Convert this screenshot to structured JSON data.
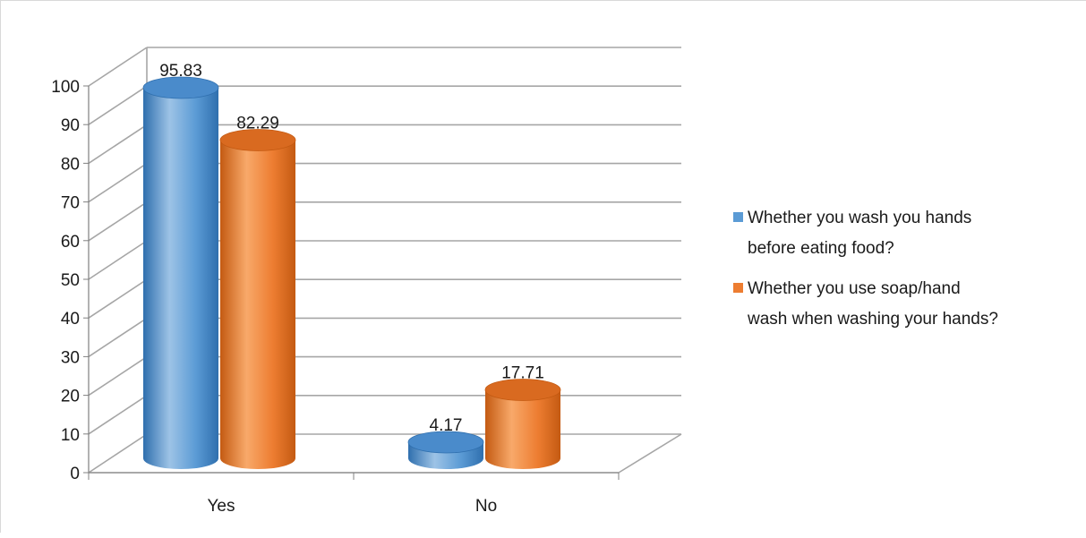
{
  "colors": {
    "series1": "#5b9bd5",
    "series1_light": "#9dc3e6",
    "series1_dark": "#2f6fae",
    "series1_top": "#4a8bcb",
    "series2": "#ed7d31",
    "series2_light": "#f8a96a",
    "series2_dark": "#c45a12",
    "series2_top": "#d96a20",
    "grid": "#a6a6a6",
    "axis": "#808080"
  },
  "chart_data": {
    "type": "bar",
    "style": "3d-cylinder",
    "title": "",
    "xlabel": "",
    "ylabel": "",
    "categories": [
      "Yes",
      "No"
    ],
    "ylim": [
      0,
      100
    ],
    "yticks": [
      "0",
      "10",
      "20",
      "30",
      "40",
      "50",
      "60",
      "70",
      "80",
      "90",
      "100"
    ],
    "grid": true,
    "legend_position": "right",
    "series": [
      {
        "name_lines": [
          "Whether you wash you hands",
          "before eating food?"
        ],
        "values": [
          95.83,
          4.17
        ],
        "labels": [
          "95.83",
          "4.17"
        ]
      },
      {
        "name_lines": [
          "Whether you use soap/hand",
          "wash when washing your hands?"
        ],
        "values": [
          82.29,
          17.71
        ],
        "labels": [
          "82.29",
          "17.71"
        ]
      }
    ]
  }
}
